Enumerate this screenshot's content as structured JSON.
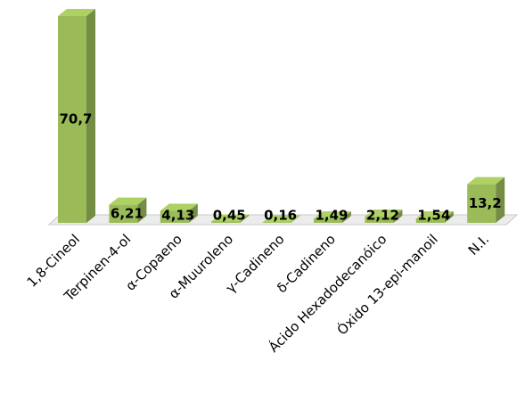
{
  "chart_data": {
    "type": "bar3d",
    "categories": [
      "1,8-Cineol",
      "Terpinen-4-ol",
      "α-Copaeno",
      "α-Muuroleno",
      "γ-Cadineno",
      "δ-Cadineno",
      "Ácido Hexadodecanóico",
      "Óxido 13-epi-manoil",
      "N.I."
    ],
    "values": [
      70.7,
      6.21,
      4.13,
      0.45,
      0.16,
      1.49,
      2.12,
      1.54,
      13.2
    ],
    "value_labels": [
      "70,7",
      "6,21",
      "4,13",
      "0,45",
      "0,16",
      "1,49",
      "2,12",
      "1,54",
      "13,2"
    ],
    "color": "#9bbb59"
  }
}
